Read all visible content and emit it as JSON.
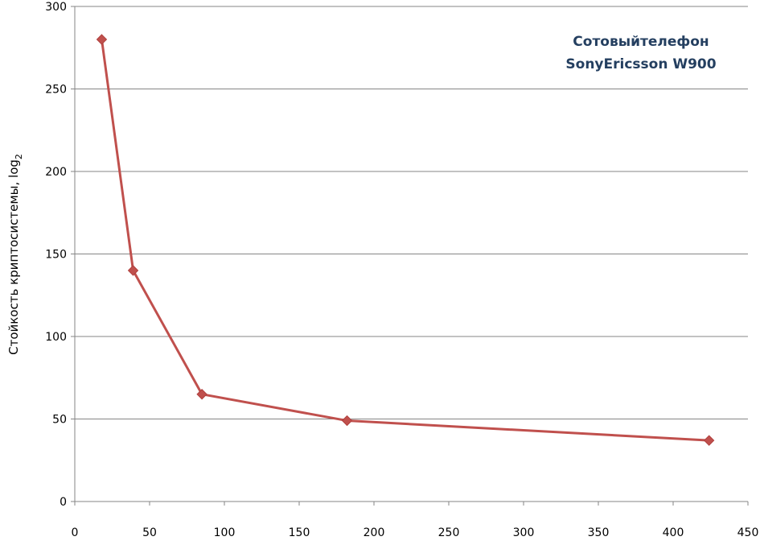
{
  "chart_data": {
    "type": "line",
    "title": "",
    "xlabel": "",
    "ylabel": "Стойкость криптосистемы, log",
    "ylabel_subscript": "2",
    "annotation": [
      "Сотовыйтелефон",
      "SonyEricsson W900"
    ],
    "xlim": [
      0,
      450
    ],
    "ylim": [
      0,
      300
    ],
    "x_ticks": [
      0,
      50,
      100,
      150,
      200,
      250,
      300,
      350,
      400,
      450
    ],
    "y_ticks": [
      0,
      50,
      100,
      150,
      200,
      250,
      300
    ],
    "grid": "horizontal",
    "legend": "none",
    "series": [
      {
        "color": "#c0504d",
        "marker": "diamond",
        "x": [
          18,
          39,
          85,
          182,
          424
        ],
        "y": [
          280,
          140,
          65,
          49,
          37
        ]
      }
    ]
  }
}
